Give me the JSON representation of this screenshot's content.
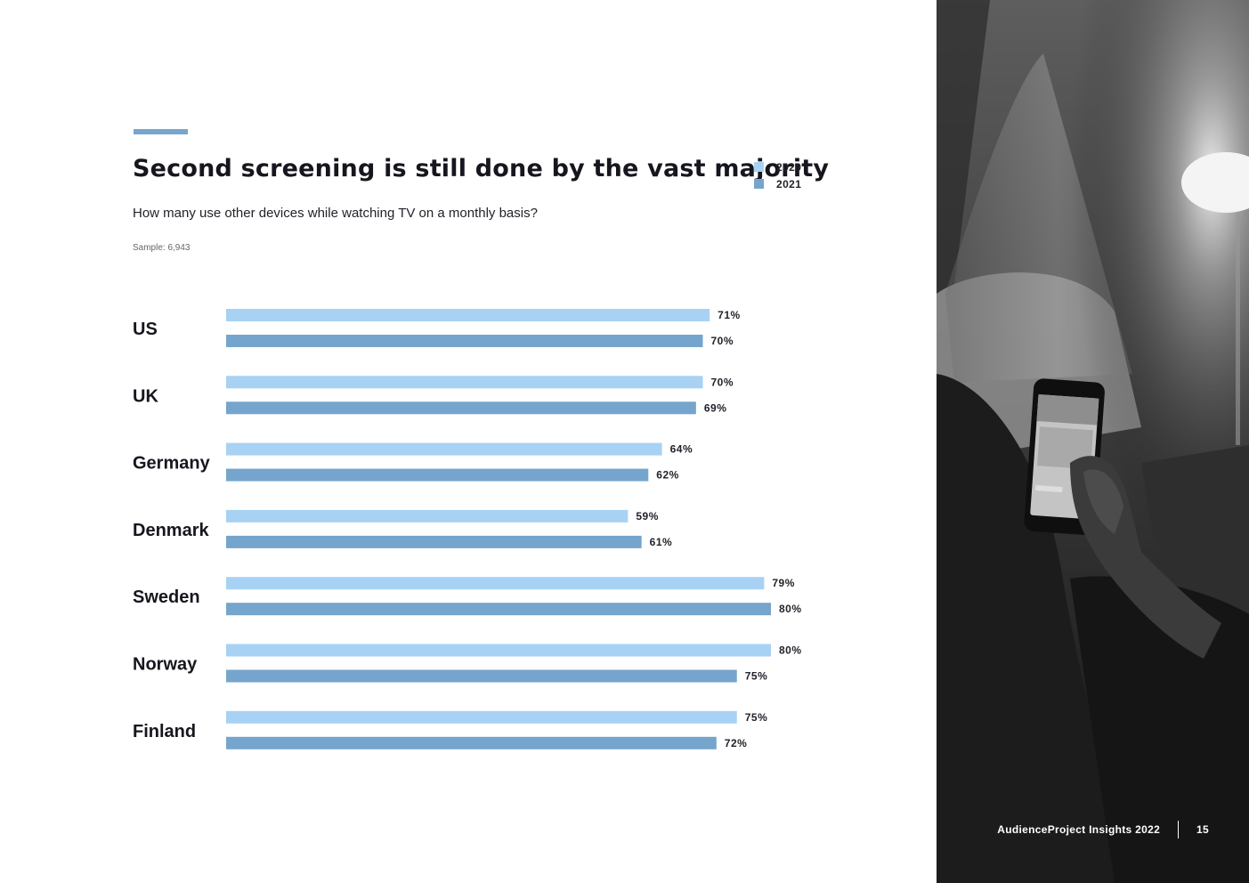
{
  "page": {
    "title": "Second screening is still done by the vast majority",
    "subtitle": "How many use other devices while watching TV on a monthly basis?",
    "sample": "Sample: 6,943",
    "footer": {
      "brand": "AudienceProject Insights 2022",
      "page_number": "15"
    },
    "photo": {
      "icon": "person-holding-smartphone-photo"
    }
  },
  "colors": {
    "series_2020": "#a7d2f4",
    "series_2021": "#75a5cc",
    "accent": "#79a6cd",
    "text": "#16161e"
  },
  "chart_data": {
    "type": "bar",
    "orientation": "horizontal",
    "title": "Second screening is still done by the vast majority",
    "subtitle": "How many use other devices while watching TV on a monthly basis?",
    "categories": [
      "US",
      "UK",
      "Germany",
      "Denmark",
      "Sweden",
      "Norway",
      "Finland"
    ],
    "series": [
      {
        "name": "2020",
        "values": [
          71,
          70,
          64,
          59,
          79,
          80,
          75
        ],
        "labels": [
          "71%",
          "70%",
          "64%",
          "59%",
          "79%",
          "80%",
          "75%"
        ]
      },
      {
        "name": "2021",
        "values": [
          70,
          69,
          62,
          61,
          80,
          75,
          72
        ],
        "labels": [
          "70%",
          "69%",
          "62%",
          "61%",
          "80%",
          "75%",
          "72%"
        ]
      }
    ],
    "value_unit": "%",
    "xlim": [
      0,
      80
    ],
    "legend_position": "top-right",
    "grid": false
  }
}
